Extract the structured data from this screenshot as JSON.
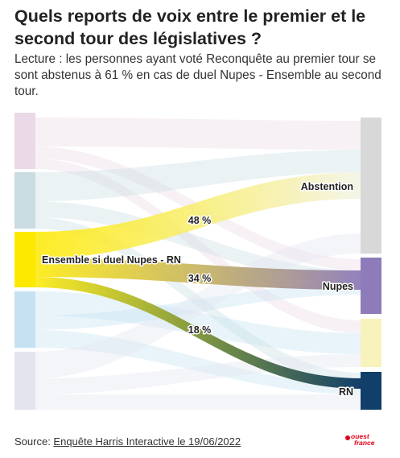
{
  "header": {
    "title": "Quels reports de voix entre le premier et le second tour des législatives ?",
    "subtitle": "Lecture : les personnes ayant voté Reconquête au premier tour se sont abstenus à 61 % en cas de duel Nupes - Ensemble au second tour."
  },
  "chart_data": {
    "type": "sankey",
    "highlighted_source": "Ensemble si duel Nupes - RN",
    "sources": [
      {
        "label": "",
        "color": "#ead9e6"
      },
      {
        "label": "",
        "color": "#c9dce2"
      },
      {
        "label": "Ensemble si duel Nupes - RN",
        "color": "#fde900"
      },
      {
        "label": "",
        "color": "#c6e1f1"
      },
      {
        "label": "",
        "color": "#e3e4ee"
      }
    ],
    "targets": [
      {
        "label": "Abstention",
        "color": "#d8d8d8"
      },
      {
        "label": "Nupes",
        "color": "#8e7cba"
      },
      {
        "label": "",
        "color": "#f8f3bd"
      },
      {
        "label": "RN",
        "color": "#123f6a"
      }
    ],
    "flows": [
      {
        "source": 2,
        "target": 0,
        "value": 48,
        "label": "48 %"
      },
      {
        "source": 2,
        "target": 1,
        "value": 34,
        "label": "34 %"
      },
      {
        "source": 2,
        "target": 3,
        "value": 18,
        "label": "18 %"
      }
    ]
  },
  "footer": {
    "source_prefix": "Source: ",
    "source_link": "Enquête Harris Interactive le 19/06/2022",
    "logo_line1": "ouest",
    "logo_line2": "france"
  }
}
